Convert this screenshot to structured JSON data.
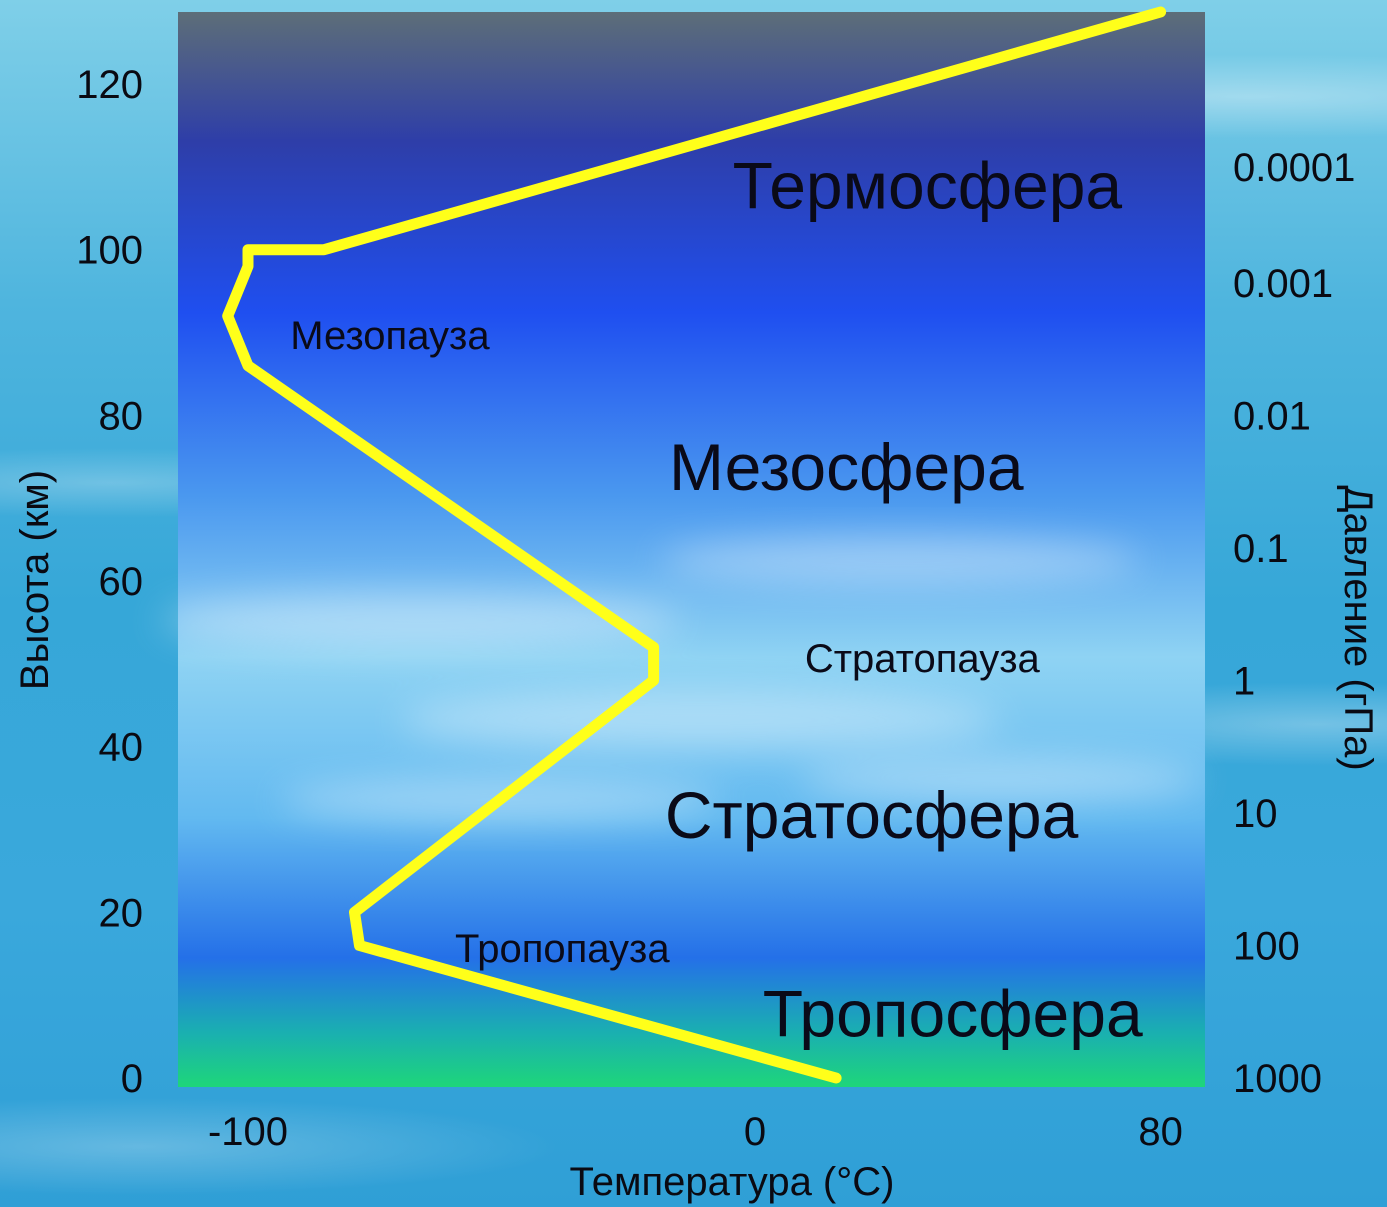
{
  "chart_data": {
    "type": "line",
    "xlabel": "Температура (°C)",
    "ylabel": "Высота (км)",
    "y2label": "Давление (гПа)",
    "xlim": [
      -112,
      80
    ],
    "ylim": [
      0,
      130
    ],
    "x_ticks": [
      "-100",
      "0",
      "80"
    ],
    "x_tick_values": [
      -100,
      0,
      80
    ],
    "y_ticks": [
      "0",
      "20",
      "40",
      "60",
      "80",
      "100",
      "120"
    ],
    "y_tick_values": [
      0,
      20,
      40,
      60,
      80,
      100,
      120
    ],
    "pressure_ticks": [
      "0.0001",
      "0.001",
      "0.01",
      "0.1",
      "1",
      "10",
      "100",
      "1000"
    ],
    "pressure_tick_heights_km": [
      110,
      96,
      80,
      64,
      48,
      32,
      16,
      0
    ],
    "series": [
      {
        "color": "#ffff1a",
        "x": [
          16,
          -78,
          -79,
          -20,
          -20,
          -100,
          -104,
          -100,
          -100,
          -85,
          80
        ],
        "y": [
          0,
          16,
          20,
          48,
          52,
          86,
          92,
          98,
          100,
          100,
          130
        ]
      }
    ],
    "regions": [
      {
        "label": "Термосфера",
        "x": 34,
        "y": 105,
        "style": "big"
      },
      {
        "label": "Мезопауза",
        "x": -72,
        "y": 88,
        "style": "small"
      },
      {
        "label": "Мезосфера",
        "x": 18,
        "y": 71,
        "style": "big"
      },
      {
        "label": "Стратопауза",
        "x": 33,
        "y": 49,
        "style": "small"
      },
      {
        "label": "Стратосфера",
        "x": 23,
        "y": 29,
        "style": "big"
      },
      {
        "label": "Тропопауза",
        "x": -38,
        "y": 14,
        "style": "small"
      },
      {
        "label": "Тропосфера",
        "x": 39,
        "y": 5,
        "style": "big"
      }
    ],
    "line_color": "#ffff1a",
    "plot_gradient": [
      "#5e6f7a",
      "#2b3fbf",
      "#1f50f0",
      "#5aa8f0",
      "#8ed2f2",
      "#5ab4f0",
      "#1e60e6",
      "#1ed680"
    ]
  }
}
